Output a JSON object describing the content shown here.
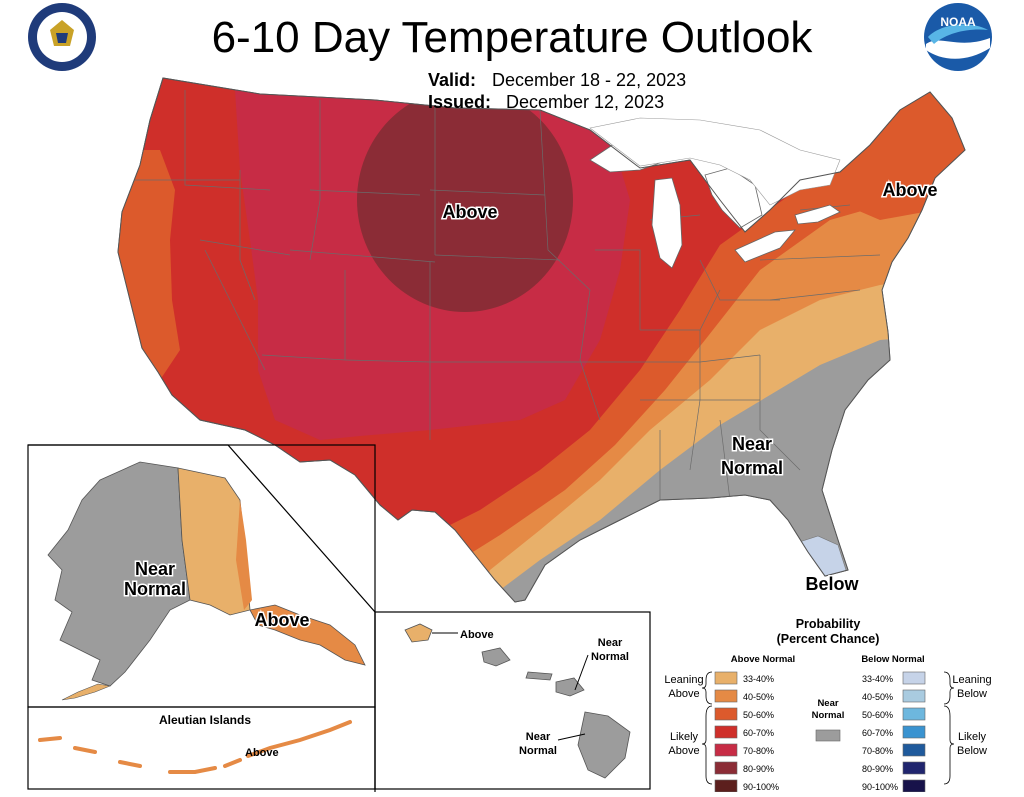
{
  "header": {
    "title": "6-10 Day Temperature Outlook",
    "valid_key": "Valid:",
    "valid_value": "December 18 - 22, 2023",
    "issued_key": "Issued:",
    "issued_value": "December 12, 2023"
  },
  "logos": {
    "left": "department-of-commerce-seal",
    "right": "noaa-logo",
    "noaa_text": "NOAA"
  },
  "map_labels": {
    "conus_above_north": "Above",
    "conus_above_northeast": "Above",
    "conus_near_normal_1": "Near",
    "conus_near_normal_2": "Normal",
    "conus_below": "Below",
    "alaska_near_1": "Near",
    "alaska_near_2": "Normal",
    "alaska_above": "Above",
    "aleutian_title": "Aleutian Islands",
    "aleutian_above": "Above",
    "hawaii_above": "Above",
    "hawaii_near_a_1": "Near",
    "hawaii_near_a_2": "Normal",
    "hawaii_near_b_1": "Near",
    "hawaii_near_b_2": "Normal"
  },
  "legend": {
    "title_1": "Probability",
    "title_2": "(Percent Chance)",
    "above_header": "Above Normal",
    "below_header": "Below Normal",
    "leaning_above_1": "Leaning",
    "leaning_above_2": "Above",
    "likely_above_1": "Likely",
    "likely_above_2": "Above",
    "leaning_below_1": "Leaning",
    "leaning_below_2": "Below",
    "likely_below_1": "Likely",
    "likely_below_2": "Below",
    "near_normal_1": "Near",
    "near_normal_2": "Normal",
    "above_classes": [
      {
        "range": "33-40%",
        "color": "#e8b06a"
      },
      {
        "range": "40-50%",
        "color": "#e58a45"
      },
      {
        "range": "50-60%",
        "color": "#dc5a2c"
      },
      {
        "range": "60-70%",
        "color": "#cf2f2a"
      },
      {
        "range": "70-80%",
        "color": "#c72c45"
      },
      {
        "range": "80-90%",
        "color": "#8b2c36"
      },
      {
        "range": "90-100%",
        "color": "#5c1f1d"
      }
    ],
    "below_classes": [
      {
        "range": "33-40%",
        "color": "#c6d3e8"
      },
      {
        "range": "40-50%",
        "color": "#a9cbe0"
      },
      {
        "range": "50-60%",
        "color": "#6db7de"
      },
      {
        "range": "60-70%",
        "color": "#3a93d0"
      },
      {
        "range": "70-80%",
        "color": "#1f5a9c"
      },
      {
        "range": "80-90%",
        "color": "#20256e"
      },
      {
        "range": "90-100%",
        "color": "#17124a"
      }
    ],
    "near_normal_color": "#9c9c9c"
  }
}
